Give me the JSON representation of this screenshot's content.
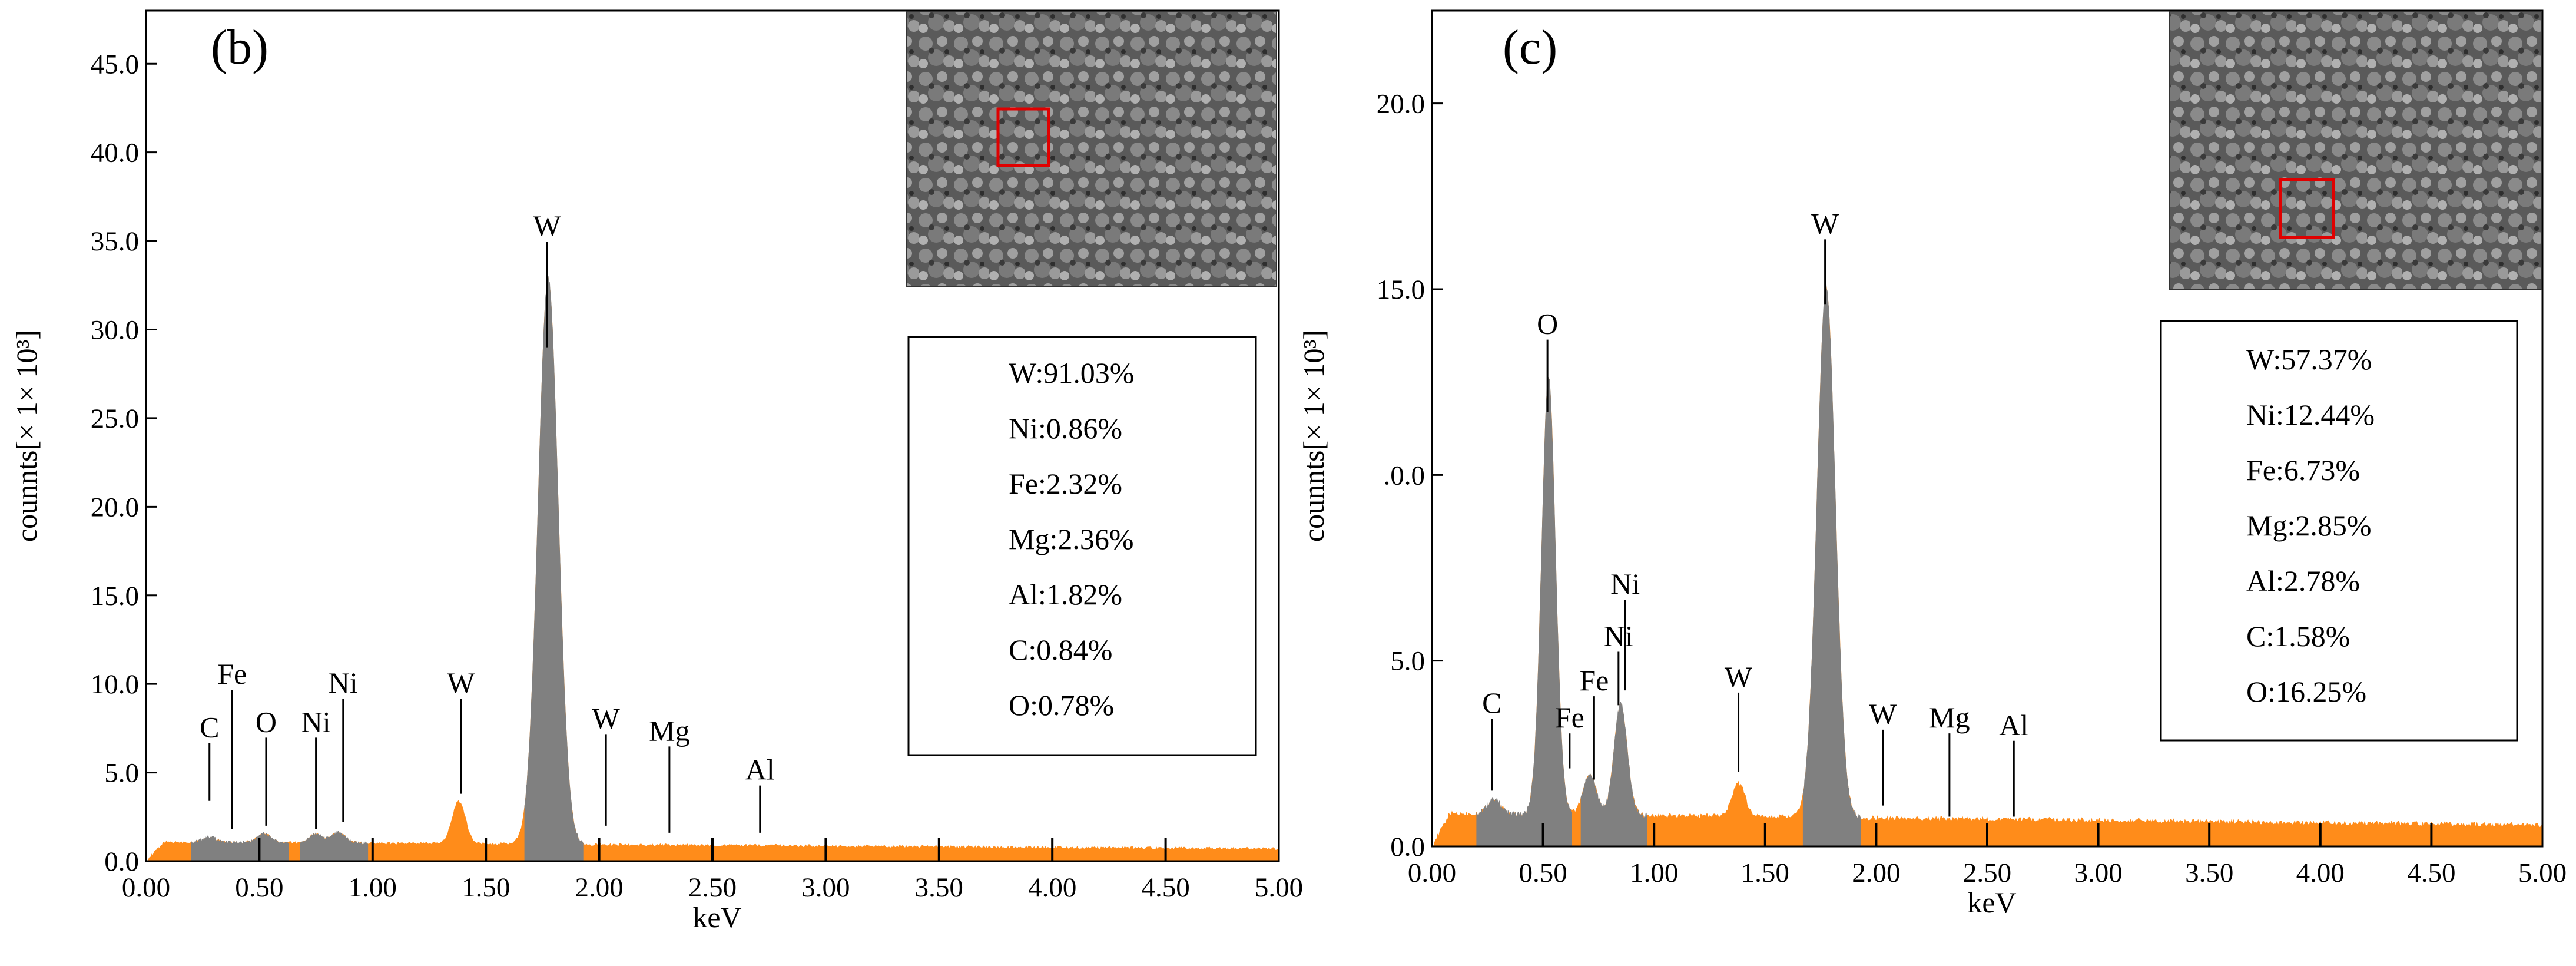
{
  "chart_data": [
    {
      "type": "area",
      "panel": "(b)",
      "xlabel": "keV",
      "ylabel": "counnts[× 1× 10³]",
      "xlim": [
        0,
        5
      ],
      "ylim": [
        0,
        48
      ],
      "x_ticks": [
        "0.00",
        "0.50",
        "1.00",
        "1.50",
        "2.00",
        "2.50",
        "3.00",
        "3.50",
        "4.00",
        "4.50",
        "5.00"
      ],
      "y_ticks": [
        "0.0",
        "5.0",
        "10.0",
        "15.0",
        "20.0",
        "25.0",
        "30.0",
        "35.0",
        "40.0",
        "45.0"
      ],
      "y_tick_values": [
        0,
        5,
        10,
        15,
        20,
        25,
        30,
        35,
        40,
        45
      ],
      "baseline": 1.1,
      "orange_peaks": [
        {
          "x": 1.38,
          "height": 2.4,
          "width": 0.03
        }
      ],
      "gray_peaks": [
        {
          "x": 0.28,
          "height": 0.3,
          "width": 0.03
        },
        {
          "x": 0.52,
          "height": 0.5,
          "width": 0.03
        },
        {
          "x": 0.75,
          "height": 0.5,
          "width": 0.03
        },
        {
          "x": 0.85,
          "height": 0.6,
          "width": 0.03
        },
        {
          "x": 1.775,
          "height": 32.0,
          "width": 0.045
        }
      ],
      "gray_regions": [
        [
          0.2,
          0.63
        ],
        [
          0.68,
          0.98
        ],
        [
          1.67,
          1.93
        ]
      ],
      "peak_labels": [
        {
          "label": "C",
          "x": 0.28,
          "y": 3.4,
          "ty": 7.0
        },
        {
          "label": "Fe",
          "x": 0.38,
          "y": 1.8,
          "ty": 10.0
        },
        {
          "label": "O",
          "x": 0.53,
          "y": 2.0,
          "ty": 7.3
        },
        {
          "label": "Ni",
          "x": 0.75,
          "y": 1.8,
          "ty": 7.3
        },
        {
          "label": "Ni",
          "x": 0.87,
          "y": 2.2,
          "ty": 9.5
        },
        {
          "label": "W",
          "x": 1.39,
          "y": 3.8,
          "ty": 9.5
        },
        {
          "label": "W",
          "x": 1.77,
          "y": 29.0,
          "ty": 35.3
        },
        {
          "label": "W",
          "x": 2.03,
          "y": 2.0,
          "ty": 7.5
        },
        {
          "label": "Mg",
          "x": 2.31,
          "y": 1.6,
          "ty": 6.8
        },
        {
          "label": "Al",
          "x": 2.71,
          "y": 1.6,
          "ty": 4.6
        }
      ],
      "composition": [
        "W:91.03%",
        "Ni:0.86%",
        "Fe:2.32%",
        "Mg:2.36%",
        "Al:1.82%",
        "C:0.84%",
        "O:0.78%"
      ]
    },
    {
      "type": "area",
      "panel": "(c)",
      "xlabel": "keV",
      "ylabel": "counnts[× 1× 10³]",
      "xlim": [
        0,
        5
      ],
      "ylim": [
        0,
        22.5
      ],
      "x_ticks": [
        "0.00",
        "0.50",
        "1.00",
        "1.50",
        "2.00",
        "2.50",
        "3.00",
        "3.50",
        "4.00",
        "4.50",
        "5.00"
      ],
      "y_ticks": [
        "0.0",
        "5.0",
        ".0.0",
        "15.0",
        "20.0"
      ],
      "y_tick_values": [
        0,
        5,
        10,
        15,
        20
      ],
      "baseline": 0.9,
      "orange_peaks": [
        {
          "x": 1.38,
          "height": 0.9,
          "width": 0.03
        }
      ],
      "gray_peaks": [
        {
          "x": 0.28,
          "height": 0.4,
          "width": 0.03
        },
        {
          "x": 0.525,
          "height": 11.8,
          "width": 0.032
        },
        {
          "x": 0.71,
          "height": 1.1,
          "width": 0.03
        },
        {
          "x": 0.85,
          "height": 3.0,
          "width": 0.03
        },
        {
          "x": 1.775,
          "height": 14.3,
          "width": 0.042
        }
      ],
      "gray_regions": [
        [
          0.2,
          0.63
        ],
        [
          0.67,
          0.97
        ],
        [
          1.67,
          1.93
        ]
      ],
      "peak_labels": [
        {
          "label": "C",
          "x": 0.27,
          "y": 1.5,
          "ty": 3.6
        },
        {
          "label": "O",
          "x": 0.52,
          "y": 11.7,
          "ty": 13.8
        },
        {
          "label": "Fe",
          "x": 0.62,
          "y": 2.1,
          "ty": 3.2
        },
        {
          "label": "Fe",
          "x": 0.73,
          "y": 1.8,
          "ty": 4.2
        },
        {
          "label": "Ni",
          "x": 0.84,
          "y": 3.8,
          "ty": 5.4
        },
        {
          "label": "Ni",
          "x": 0.87,
          "y": 4.2,
          "ty": 6.8
        },
        {
          "label": "W",
          "x": 1.38,
          "y": 2.0,
          "ty": 4.3
        },
        {
          "label": "W",
          "x": 1.77,
          "y": 14.6,
          "ty": 16.5
        },
        {
          "label": "W",
          "x": 2.03,
          "y": 1.1,
          "ty": 3.3
        },
        {
          "label": "Mg",
          "x": 2.33,
          "y": 0.8,
          "ty": 3.2
        },
        {
          "label": "Al",
          "x": 2.62,
          "y": 0.8,
          "ty": 3.0
        }
      ],
      "composition": [
        "W:57.37%",
        "Ni:12.44%",
        "Fe:6.73%",
        "Mg:2.85%",
        "Al:2.78%",
        "C:1.58%",
        "O:16.25%"
      ]
    }
  ]
}
